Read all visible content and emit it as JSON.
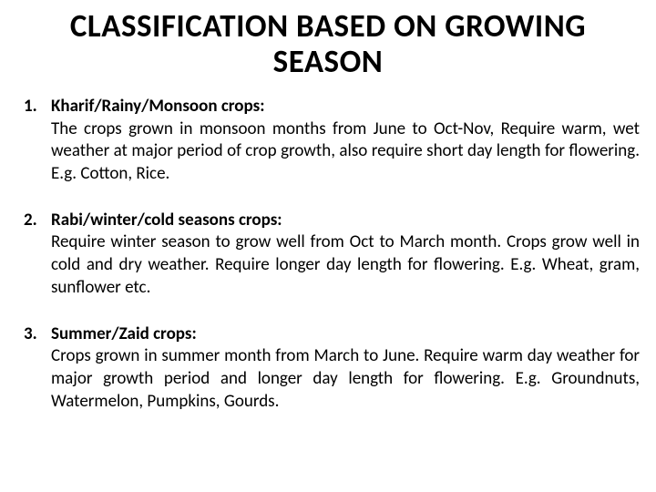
{
  "title": "CLASSIFICATION BASED ON GROWING SEASON",
  "items": [
    {
      "num": "1.",
      "heading": "Kharif/Rainy/Monsoon crops:",
      "body": "The crops grown in monsoon months from June to Oct-Nov, Require warm, wet weather at major period of crop growth, also require short day length for flowering. E.g. Cotton, Rice."
    },
    {
      "num": "2.",
      "heading": "Rabi/winter/cold seasons crops:",
      "body": "Require winter season to grow well from Oct to March month. Crops grow well in cold and dry weather. Require longer day length for flowering. E.g. Wheat, gram, sunflower etc."
    },
    {
      "num": "3.",
      "heading": "Summer/Zaid crops:",
      "body": "Crops grown in summer month from March to June. Require warm day weather for major growth period and longer day length for flowering. E.g. Groundnuts, Watermelon, Pumpkins, Gourds."
    }
  ]
}
